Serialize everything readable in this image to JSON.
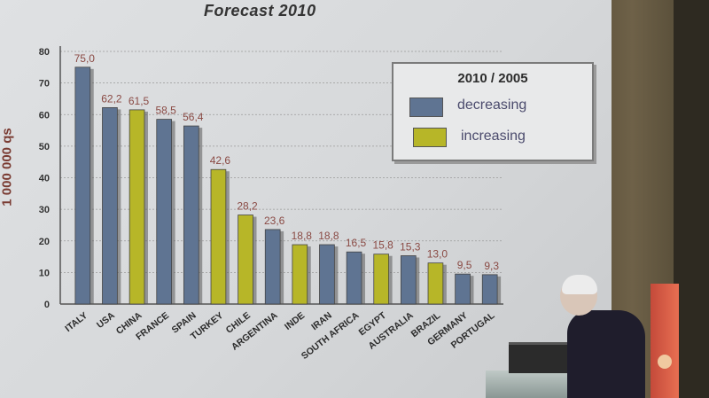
{
  "slide_title": "Forecast  2010",
  "colors": {
    "decreasing": "#5f7492",
    "increasing": "#b7b628",
    "value_label": "#8a4a44",
    "grid": "#9a9a9a"
  },
  "chart_data": {
    "type": "bar",
    "title": "Forecast  2010",
    "ylabel": "1 000 000 qs",
    "ylim": [
      0,
      80
    ],
    "yticks": [
      "0",
      "10",
      "20",
      "30",
      "40",
      "50",
      "60",
      "70",
      "80"
    ],
    "ytick_values": [
      0,
      10,
      20,
      30,
      40,
      50,
      60,
      70,
      80
    ],
    "categories": [
      "ITALY",
      "USA",
      "CHINA",
      "FRANCE",
      "SPAIN",
      "TURKEY",
      "CHILE",
      "ARGENTINA",
      "INDE",
      "IRAN",
      "SOUTH AFRICA",
      "EGYPT",
      "AUSTRALIA",
      "BRAZIL",
      "GERMANY",
      "PORTUGAL"
    ],
    "values": [
      75.0,
      62.2,
      61.5,
      58.5,
      56.4,
      42.6,
      28.2,
      23.6,
      18.8,
      18.8,
      16.5,
      15.8,
      15.3,
      13.0,
      9.5,
      9.3
    ],
    "value_labels": [
      "75,0",
      "62,2",
      "61,5",
      "58,5",
      "56,4",
      "42,6",
      "28,2",
      "23,6",
      "18,8",
      "18,8",
      "16,5",
      "15,8",
      "15,3",
      "13,0",
      "9,5",
      "9,3"
    ],
    "trend": [
      "decreasing",
      "decreasing",
      "increasing",
      "decreasing",
      "decreasing",
      "increasing",
      "increasing",
      "decreasing",
      "increasing",
      "decreasing",
      "decreasing",
      "increasing",
      "decreasing",
      "increasing",
      "decreasing",
      "decreasing"
    ],
    "legend": {
      "title": "2010 / 2005",
      "items": [
        {
          "key": "decreasing",
          "label": "decreasing"
        },
        {
          "key": "increasing",
          "label": "increasing"
        }
      ],
      "position": "top-right"
    },
    "grid": true
  }
}
